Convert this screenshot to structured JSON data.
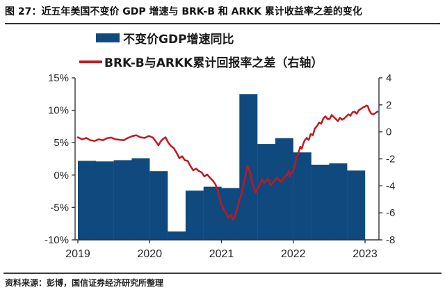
{
  "header": {
    "title": "图 27：近五年美国不变价 GDP 增速与 BRK-B 和 ARKK 累计收益率之差的变化"
  },
  "legend": [
    {
      "label": "不变价GDP增速同比",
      "type": "bar",
      "color": "#10497e"
    },
    {
      "label": "BRK-B与ARKK累计回报率之差（右轴）",
      "type": "line",
      "color": "#c0181f"
    }
  ],
  "footer": {
    "source": "资料来源：彭博，国信证券经济研究所整理"
  },
  "colors": {
    "bar": "#10497e",
    "line": "#c0181f",
    "axis": "#333333",
    "tick_label": "#262626"
  },
  "chart_data": {
    "type": "combo",
    "x_axis": {
      "ticks": [
        "2019",
        "2020",
        "2021",
        "2022",
        "2023"
      ],
      "min": 2019,
      "max": 2023.19
    },
    "left_axis": {
      "title": "GDP YoY",
      "unit": "%",
      "ticks": [
        "15%",
        "10%",
        "5%",
        "0%",
        "-5%",
        "-10%"
      ],
      "max": 15,
      "min": -10
    },
    "right_axis": {
      "title": "BRK-B minus ARKK cumulative return difference",
      "ticks": [
        "4",
        "2",
        "0",
        "-2",
        "-4",
        "-6",
        "-8"
      ],
      "max": 4,
      "min": -8
    },
    "bar_baseline": -10,
    "grid": false,
    "legend_position": "top",
    "series": [
      {
        "name": "不变价GDP增速同比",
        "type": "bar",
        "axis": "left",
        "unit": "%",
        "color": "#10497e",
        "categories": [
          "2019Q1",
          "2019Q2",
          "2019Q3",
          "2019Q4",
          "2020Q1",
          "2020Q2",
          "2020Q3",
          "2020Q4",
          "2021Q1",
          "2021Q2",
          "2021Q3",
          "2021Q4",
          "2022Q1",
          "2022Q2",
          "2022Q3",
          "2022Q4"
        ],
        "values": [
          2.2,
          2.1,
          2.3,
          2.6,
          0.6,
          -8.7,
          -2.4,
          -1.8,
          -2.0,
          12.5,
          4.8,
          5.7,
          3.5,
          1.6,
          1.8,
          0.7
        ]
      },
      {
        "name": "BRK-B与ARKK累计回报率之差（右轴）",
        "type": "line",
        "axis": "right",
        "color": "#c0181f",
        "points": [
          [
            2019.0,
            -0.4
          ],
          [
            2019.058,
            -0.55
          ],
          [
            2019.116,
            -0.45
          ],
          [
            2019.174,
            -0.62
          ],
          [
            2019.232,
            -0.67
          ],
          [
            2019.291,
            -0.55
          ],
          [
            2019.349,
            -0.62
          ],
          [
            2019.407,
            -0.47
          ],
          [
            2019.465,
            -0.42
          ],
          [
            2019.523,
            -0.55
          ],
          [
            2019.581,
            -0.58
          ],
          [
            2019.639,
            -0.62
          ],
          [
            2019.697,
            -0.45
          ],
          [
            2019.755,
            -0.32
          ],
          [
            2019.814,
            -0.25
          ],
          [
            2019.872,
            -0.4
          ],
          [
            2019.93,
            -0.45
          ],
          [
            2019.988,
            -0.3
          ],
          [
            2020.046,
            -0.42
          ],
          [
            2020.094,
            -0.78
          ],
          [
            2020.123,
            -1.0
          ],
          [
            2020.152,
            -0.72
          ],
          [
            2020.181,
            -0.55
          ],
          [
            2020.22,
            -0.4
          ],
          [
            2020.259,
            -0.8
          ],
          [
            2020.298,
            -1.05
          ],
          [
            2020.336,
            -1.2
          ],
          [
            2020.375,
            -1.55
          ],
          [
            2020.414,
            -1.95
          ],
          [
            2020.453,
            -1.8
          ],
          [
            2020.491,
            -2.1
          ],
          [
            2020.53,
            -2.15
          ],
          [
            2020.569,
            -2.55
          ],
          [
            2020.608,
            -2.85
          ],
          [
            2020.646,
            -2.72
          ],
          [
            2020.685,
            -2.9
          ],
          [
            2020.724,
            -3.0
          ],
          [
            2020.763,
            -3.3
          ],
          [
            2020.801,
            -3.15
          ],
          [
            2020.84,
            -3.4
          ],
          [
            2020.879,
            -3.6
          ],
          [
            2020.918,
            -3.9
          ],
          [
            2020.956,
            -4.5
          ],
          [
            2020.995,
            -5.3
          ],
          [
            2021.034,
            -5.8
          ],
          [
            2021.073,
            -6.1
          ],
          [
            2021.102,
            -6.35
          ],
          [
            2021.131,
            -6.15
          ],
          [
            2021.16,
            -6.5
          ],
          [
            2021.189,
            -6.25
          ],
          [
            2021.218,
            -5.7
          ],
          [
            2021.247,
            -5.1
          ],
          [
            2021.276,
            -4.7
          ],
          [
            2021.305,
            -3.95
          ],
          [
            2021.334,
            -3.3
          ],
          [
            2021.363,
            -2.5
          ],
          [
            2021.392,
            -2.85
          ],
          [
            2021.421,
            -3.6
          ],
          [
            2021.45,
            -4.1
          ],
          [
            2021.479,
            -4.5
          ],
          [
            2021.508,
            -4.15
          ],
          [
            2021.537,
            -3.9
          ],
          [
            2021.567,
            -3.5
          ],
          [
            2021.596,
            -3.8
          ],
          [
            2021.625,
            -3.6
          ],
          [
            2021.654,
            -3.5
          ],
          [
            2021.683,
            -3.95
          ],
          [
            2021.712,
            -3.8
          ],
          [
            2021.741,
            -3.6
          ],
          [
            2021.77,
            -3.4
          ],
          [
            2021.799,
            -3.55
          ],
          [
            2021.828,
            -3.7
          ],
          [
            2021.857,
            -3.5
          ],
          [
            2021.886,
            -3.3
          ],
          [
            2021.915,
            -3.2
          ],
          [
            2021.934,
            -2.9
          ],
          [
            2021.954,
            -3.3
          ],
          [
            2021.973,
            -3.0
          ],
          [
            2022.002,
            -2.85
          ],
          [
            2022.022,
            -2.55
          ],
          [
            2022.041,
            -1.9
          ],
          [
            2022.06,
            -1.75
          ],
          [
            2022.08,
            -1.4
          ],
          [
            2022.099,
            -1.1
          ],
          [
            2022.118,
            -1.25
          ],
          [
            2022.138,
            -0.9
          ],
          [
            2022.157,
            -0.65
          ],
          [
            2022.186,
            -0.45
          ],
          [
            2022.215,
            -0.6
          ],
          [
            2022.244,
            -0.15
          ],
          [
            2022.273,
            -0.25
          ],
          [
            2022.302,
            0.25
          ],
          [
            2022.332,
            0.45
          ],
          [
            2022.361,
            0.7
          ],
          [
            2022.39,
            0.6
          ],
          [
            2022.419,
            1.0
          ],
          [
            2022.448,
            1.15
          ],
          [
            2022.477,
            0.95
          ],
          [
            2022.506,
            0.95
          ],
          [
            2022.535,
            1.25
          ],
          [
            2022.564,
            1.1
          ],
          [
            2022.593,
            0.95
          ],
          [
            2022.622,
            0.8
          ],
          [
            2022.651,
            1.05
          ],
          [
            2022.681,
            0.9
          ],
          [
            2022.71,
            1.0
          ],
          [
            2022.739,
            1.15
          ],
          [
            2022.768,
            1.3
          ],
          [
            2022.797,
            1.2
          ],
          [
            2022.826,
            1.45
          ],
          [
            2022.855,
            1.5
          ],
          [
            2022.884,
            1.35
          ],
          [
            2022.913,
            1.6
          ],
          [
            2022.942,
            1.7
          ],
          [
            2022.971,
            1.8
          ],
          [
            2023.0,
            1.88
          ],
          [
            2023.019,
            1.95
          ],
          [
            2023.039,
            1.9
          ],
          [
            2023.058,
            1.6
          ],
          [
            2023.087,
            1.35
          ],
          [
            2023.116,
            1.3
          ],
          [
            2023.145,
            1.4
          ],
          [
            2023.174,
            1.5
          ]
        ]
      }
    ]
  }
}
